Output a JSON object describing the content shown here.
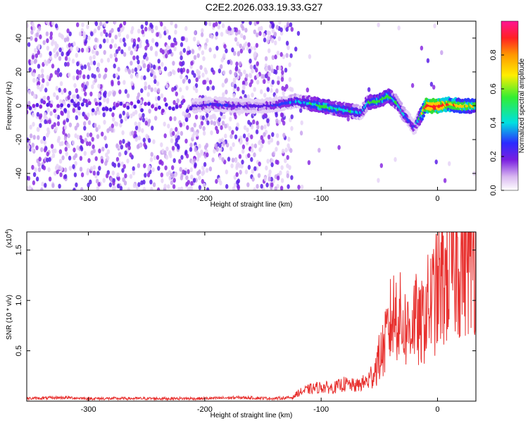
{
  "title": "C2E2.2026.033.19.33.G27",
  "chart_data": [
    {
      "type": "heatmap",
      "name": "spectrogram",
      "xlabel": "Height of straight line (km)",
      "ylabel": "Frequency (Hz)",
      "xlim": [
        -353,
        33
      ],
      "ylim": [
        -50,
        50
      ],
      "xticks": [
        -300,
        -200,
        -100,
        0
      ],
      "yticks": [
        -40,
        -20,
        0,
        20,
        40
      ],
      "colorbar": {
        "label": "Normalized spectral amplitude",
        "range": [
          0.0,
          1.0
        ],
        "ticks": [
          0.0,
          0.2,
          0.4,
          0.6,
          0.8
        ]
      },
      "trace": {
        "description": "strong near-zero frequency signal",
        "x": [
          -210,
          -190,
          -170,
          -150,
          -135,
          -120,
          -100,
          -85,
          -75,
          -65,
          -60,
          -50,
          -42,
          -35,
          -30,
          -25,
          -20,
          -10,
          0,
          10,
          20,
          33
        ],
        "y": [
          0,
          1,
          0,
          0,
          1,
          3,
          0,
          -2,
          -3,
          -4,
          2,
          3,
          6,
          2,
          -4,
          -8,
          -13,
          0,
          0,
          1,
          0,
          0
        ],
        "amplitude": [
          0.3,
          0.35,
          0.3,
          0.3,
          0.4,
          0.45,
          0.6,
          0.55,
          0.5,
          0.45,
          0.55,
          0.6,
          0.6,
          0.5,
          0.45,
          0.4,
          0.3,
          0.9,
          0.95,
          0.8,
          0.75,
          0.7
        ]
      }
    },
    {
      "type": "line",
      "name": "snr",
      "xlabel": "Height of straight line (km)",
      "ylabel": "SNR (10 * v/v)",
      "yscale_label": "(x10",
      "yscale_exp": "4",
      "scale_note": "values in units of 1e4",
      "xlim": [
        -353,
        33
      ],
      "ylim": [
        0,
        1.68
      ],
      "xticks": [
        -300,
        -200,
        -100,
        0
      ],
      "yticks": [
        0.5,
        1.0,
        1.5
      ],
      "ytick_labels": [
        "0.5",
        "1.0",
        "1.5"
      ],
      "color": "#e8312f",
      "x": [
        -353,
        -320,
        -300,
        -250,
        -200,
        -170,
        -140,
        -125,
        -120,
        -110,
        -100,
        -90,
        -80,
        -70,
        -60,
        -55,
        -50,
        -45,
        -40,
        -35,
        -30,
        -25,
        -20,
        -15,
        -10,
        -5,
        0,
        5,
        10,
        15,
        20,
        25,
        33
      ],
      "y": [
        0.02,
        0.03,
        0.02,
        0.02,
        0.02,
        0.03,
        0.02,
        0.03,
        0.08,
        0.12,
        0.14,
        0.13,
        0.17,
        0.15,
        0.2,
        0.3,
        0.45,
        0.6,
        0.85,
        0.95,
        0.8,
        0.75,
        0.9,
        0.75,
        0.95,
        1.05,
        1.15,
        1.25,
        1.35,
        1.45,
        1.5,
        1.55,
        1.6
      ]
    }
  ]
}
